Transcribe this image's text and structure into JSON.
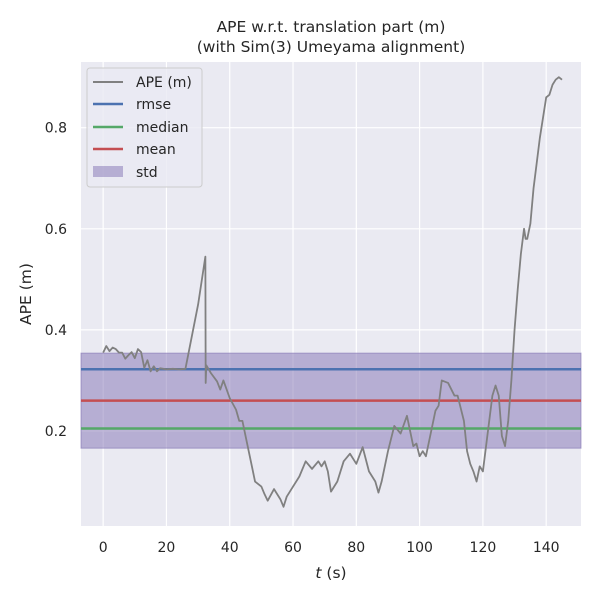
{
  "chart_data": {
    "type": "line",
    "title": "APE w.r.t. translation part (m)",
    "subtitle": "(with Sim(3) Umeyama alignment)",
    "xlabel_var": "t",
    "xlabel_unit": " (s)",
    "ylabel": "APE (m)",
    "xlim": [
      -7,
      151
    ],
    "ylim": [
      0.012,
      0.93
    ],
    "xticks": [
      0,
      20,
      40,
      60,
      80,
      100,
      120,
      140
    ],
    "yticks": [
      0.2,
      0.4,
      0.6,
      0.8
    ],
    "xtick_labels": [
      "0",
      "20",
      "40",
      "60",
      "80",
      "100",
      "120",
      "140"
    ],
    "ytick_labels": [
      "0.2",
      "0.4",
      "0.6",
      "0.8"
    ],
    "grid": true,
    "legend_position": "upper-left",
    "series": [
      {
        "name": "APE (m)",
        "color": "#808080",
        "points": [
          [
            0,
            0.355
          ],
          [
            1,
            0.368
          ],
          [
            2,
            0.358
          ],
          [
            3,
            0.365
          ],
          [
            4,
            0.362
          ],
          [
            5,
            0.355
          ],
          [
            6,
            0.355
          ],
          [
            7,
            0.343
          ],
          [
            8,
            0.35
          ],
          [
            9,
            0.356
          ],
          [
            10,
            0.344
          ],
          [
            11,
            0.362
          ],
          [
            12,
            0.356
          ],
          [
            13,
            0.325
          ],
          [
            14,
            0.34
          ],
          [
            15,
            0.318
          ],
          [
            16,
            0.328
          ],
          [
            17,
            0.318
          ],
          [
            18,
            0.324
          ],
          [
            20,
            0.322
          ],
          [
            22,
            0.323
          ],
          [
            24,
            0.322
          ],
          [
            26,
            0.323
          ],
          [
            30,
            0.45
          ],
          [
            32.3,
            0.545
          ],
          [
            32.4,
            0.295
          ],
          [
            32.6,
            0.33
          ],
          [
            34,
            0.315
          ],
          [
            36,
            0.298
          ],
          [
            37,
            0.282
          ],
          [
            38,
            0.3
          ],
          [
            40,
            0.265
          ],
          [
            42,
            0.242
          ],
          [
            43,
            0.22
          ],
          [
            44,
            0.22
          ],
          [
            46,
            0.16
          ],
          [
            47,
            0.13
          ],
          [
            48,
            0.1
          ],
          [
            50,
            0.09
          ],
          [
            51,
            0.075
          ],
          [
            52,
            0.062
          ],
          [
            54,
            0.085
          ],
          [
            56,
            0.065
          ],
          [
            57,
            0.05
          ],
          [
            58,
            0.07
          ],
          [
            60,
            0.09
          ],
          [
            62,
            0.11
          ],
          [
            64,
            0.14
          ],
          [
            66,
            0.125
          ],
          [
            68,
            0.14
          ],
          [
            69,
            0.13
          ],
          [
            70,
            0.14
          ],
          [
            71,
            0.12
          ],
          [
            72,
            0.08
          ],
          [
            74,
            0.1
          ],
          [
            76,
            0.14
          ],
          [
            78,
            0.155
          ],
          [
            80,
            0.135
          ],
          [
            82,
            0.168
          ],
          [
            84,
            0.12
          ],
          [
            86,
            0.1
          ],
          [
            87,
            0.078
          ],
          [
            88,
            0.1
          ],
          [
            90,
            0.16
          ],
          [
            92,
            0.21
          ],
          [
            94,
            0.195
          ],
          [
            96,
            0.23
          ],
          [
            98,
            0.17
          ],
          [
            99,
            0.175
          ],
          [
            100,
            0.15
          ],
          [
            101,
            0.16
          ],
          [
            102,
            0.15
          ],
          [
            104,
            0.21
          ],
          [
            105,
            0.24
          ],
          [
            106,
            0.25
          ],
          [
            107,
            0.3
          ],
          [
            109,
            0.295
          ],
          [
            111,
            0.27
          ],
          [
            112,
            0.27
          ],
          [
            114,
            0.22
          ],
          [
            115,
            0.16
          ],
          [
            116,
            0.135
          ],
          [
            117,
            0.12
          ],
          [
            118,
            0.1
          ],
          [
            119,
            0.13
          ],
          [
            120,
            0.12
          ],
          [
            121,
            0.17
          ],
          [
            122,
            0.22
          ],
          [
            123,
            0.27
          ],
          [
            124,
            0.29
          ],
          [
            125,
            0.27
          ],
          [
            126,
            0.19
          ],
          [
            127,
            0.17
          ],
          [
            128,
            0.22
          ],
          [
            129,
            0.3
          ],
          [
            130,
            0.4
          ],
          [
            131,
            0.48
          ],
          [
            132,
            0.55
          ],
          [
            133,
            0.6
          ],
          [
            133.5,
            0.58
          ],
          [
            134,
            0.58
          ],
          [
            135,
            0.61
          ],
          [
            136,
            0.68
          ],
          [
            137,
            0.73
          ],
          [
            138,
            0.78
          ],
          [
            139,
            0.82
          ],
          [
            140,
            0.86
          ],
          [
            141,
            0.865
          ],
          [
            142,
            0.885
          ],
          [
            143,
            0.895
          ],
          [
            144,
            0.9
          ],
          [
            145,
            0.895
          ]
        ]
      },
      {
        "name": "rmse",
        "color": "#4c72b0",
        "value": 0.322
      },
      {
        "name": "median",
        "color": "#55a868",
        "value": 0.205
      },
      {
        "name": "mean",
        "color": "#c44e52",
        "value": 0.26
      }
    ],
    "std_band": {
      "name": "std",
      "color": "#8172b3",
      "low": 0.166,
      "high": 0.354
    }
  }
}
